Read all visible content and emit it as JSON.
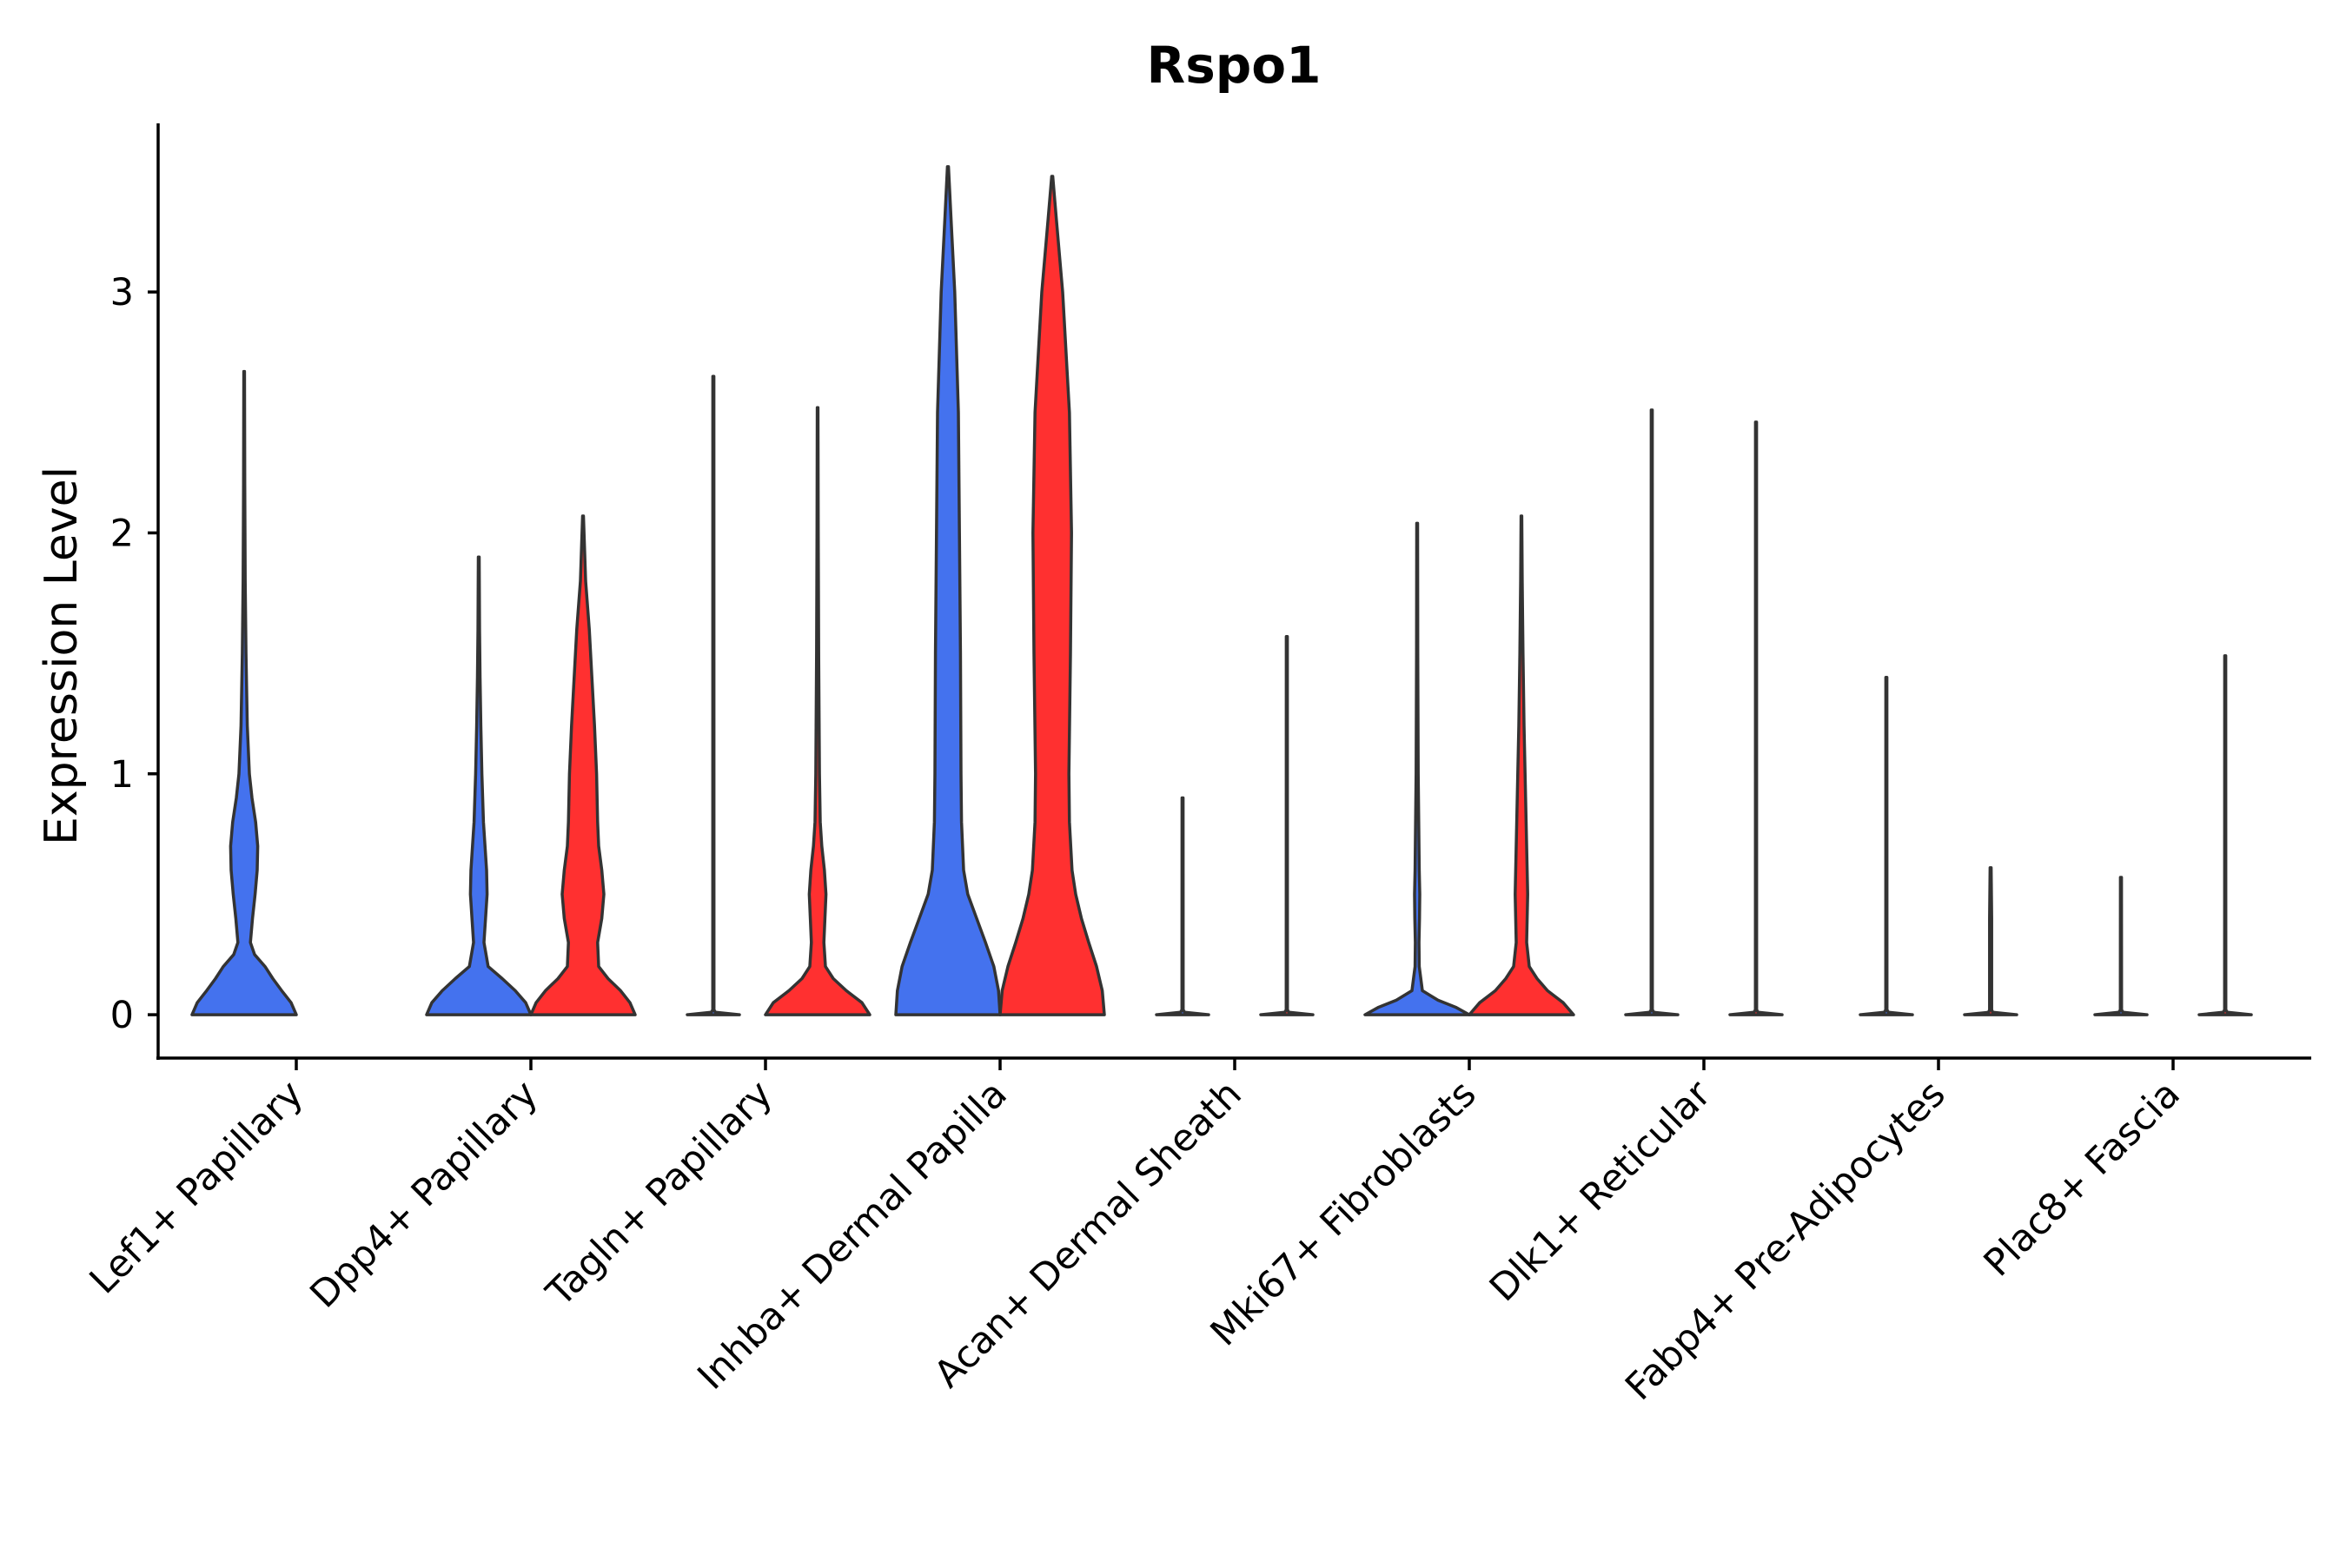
{
  "chart_data": {
    "type": "violin",
    "title": "Rspo1",
    "xlabel": "",
    "ylabel": "Expression Level",
    "ylim": [
      -0.18,
      3.7
    ],
    "yticks": [
      0,
      1,
      2,
      3
    ],
    "categories": [
      "Lef1+ Papillary",
      "Dpp4+ Papillary",
      "Tagln+ Papillary",
      "Inhba+ Dermal Papilla",
      "Acan+ Dermal Sheath",
      "Mki67+ Fibroblasts",
      "Dlk1+ Reticular",
      "Fabp4+ Pre-Adipocytes",
      "Plac8+ Fascia"
    ],
    "series": [
      {
        "name": "group1",
        "color": "#4472EE",
        "violins": [
          {
            "category": "Lef1+ Papillary",
            "max": 2.67,
            "profile": [
              [
                0,
                1.0
              ],
              [
                0.05,
                0.9
              ],
              [
                0.1,
                0.72
              ],
              [
                0.15,
                0.55
              ],
              [
                0.2,
                0.4
              ],
              [
                0.25,
                0.2
              ],
              [
                0.3,
                0.12
              ],
              [
                0.4,
                0.16
              ],
              [
                0.5,
                0.21
              ],
              [
                0.6,
                0.25
              ],
              [
                0.7,
                0.26
              ],
              [
                0.8,
                0.22
              ],
              [
                0.9,
                0.15
              ],
              [
                1.0,
                0.1
              ],
              [
                1.2,
                0.06
              ],
              [
                1.5,
                0.035
              ],
              [
                1.8,
                0.02
              ],
              [
                2.2,
                0.012
              ],
              [
                2.67,
                0.006
              ]
            ]
          },
          {
            "category": "Dpp4+ Papillary",
            "max": 1.9,
            "profile": [
              [
                0,
                1.0
              ],
              [
                0.05,
                0.9
              ],
              [
                0.1,
                0.7
              ],
              [
                0.15,
                0.45
              ],
              [
                0.2,
                0.18
              ],
              [
                0.3,
                0.1
              ],
              [
                0.4,
                0.13
              ],
              [
                0.5,
                0.16
              ],
              [
                0.6,
                0.15
              ],
              [
                0.7,
                0.12
              ],
              [
                0.8,
                0.09
              ],
              [
                1.0,
                0.06
              ],
              [
                1.2,
                0.04
              ],
              [
                1.4,
                0.025
              ],
              [
                1.6,
                0.015
              ],
              [
                1.9,
                0.008
              ]
            ]
          },
          {
            "category": "Tagln+ Papillary",
            "max": 2.65,
            "profile": [
              [
                0,
                0.5
              ],
              [
                0.01,
                0.04
              ],
              [
                0.02,
                0.012
              ],
              [
                2.65,
                0.01
              ]
            ]
          },
          {
            "category": "Inhba+ Dermal Papilla",
            "max": 3.52,
            "profile": [
              [
                0,
                1.0
              ],
              [
                0.1,
                0.97
              ],
              [
                0.2,
                0.88
              ],
              [
                0.3,
                0.72
              ],
              [
                0.4,
                0.55
              ],
              [
                0.5,
                0.38
              ],
              [
                0.6,
                0.3
              ],
              [
                0.8,
                0.26
              ],
              [
                1.0,
                0.25
              ],
              [
                1.5,
                0.24
              ],
              [
                2.0,
                0.22
              ],
              [
                2.5,
                0.2
              ],
              [
                3.0,
                0.13
              ],
              [
                3.3,
                0.06
              ],
              [
                3.52,
                0.01
              ]
            ]
          },
          {
            "category": "Acan+ Dermal Sheath",
            "max": 0.9,
            "profile": [
              [
                0,
                0.5
              ],
              [
                0.01,
                0.04
              ],
              [
                0.02,
                0.012
              ],
              [
                0.9,
                0.01
              ]
            ]
          },
          {
            "category": "Mki67+ Fibroblasts",
            "max": 2.04,
            "profile": [
              [
                0,
                1.0
              ],
              [
                0.03,
                0.75
              ],
              [
                0.06,
                0.4
              ],
              [
                0.1,
                0.1
              ],
              [
                0.2,
                0.04
              ],
              [
                0.3,
                0.035
              ],
              [
                0.4,
                0.045
              ],
              [
                0.5,
                0.05
              ],
              [
                0.6,
                0.04
              ],
              [
                0.8,
                0.03
              ],
              [
                1.0,
                0.02
              ],
              [
                1.5,
                0.012
              ],
              [
                2.04,
                0.008
              ]
            ]
          },
          {
            "category": "Dlk1+ Reticular",
            "max": 2.51,
            "profile": [
              [
                0,
                0.5
              ],
              [
                0.01,
                0.04
              ],
              [
                0.02,
                0.012
              ],
              [
                2.51,
                0.01
              ]
            ]
          },
          {
            "category": "Fabp4+ Pre-Adipocytes",
            "max": 1.4,
            "profile": [
              [
                0,
                0.5
              ],
              [
                0.01,
                0.04
              ],
              [
                0.02,
                0.012
              ],
              [
                1.4,
                0.01
              ]
            ]
          },
          {
            "category": "Plac8+ Fascia",
            "max": 0.57,
            "profile": [
              [
                0,
                0.5
              ],
              [
                0.01,
                0.04
              ],
              [
                0.02,
                0.012
              ],
              [
                0.57,
                0.01
              ]
            ]
          }
        ]
      },
      {
        "name": "group2",
        "color": "#FF3030",
        "violins": [
          {
            "category": "Lef1+ Papillary",
            "max": null,
            "profile": []
          },
          {
            "category": "Dpp4+ Papillary",
            "max": 2.07,
            "profile": [
              [
                0,
                1.0
              ],
              [
                0.05,
                0.9
              ],
              [
                0.1,
                0.72
              ],
              [
                0.15,
                0.48
              ],
              [
                0.2,
                0.3
              ],
              [
                0.3,
                0.28
              ],
              [
                0.4,
                0.36
              ],
              [
                0.5,
                0.4
              ],
              [
                0.6,
                0.36
              ],
              [
                0.7,
                0.3
              ],
              [
                0.8,
                0.28
              ],
              [
                1.0,
                0.26
              ],
              [
                1.2,
                0.22
              ],
              [
                1.4,
                0.17
              ],
              [
                1.6,
                0.12
              ],
              [
                1.8,
                0.05
              ],
              [
                2.07,
                0.008
              ]
            ]
          },
          {
            "category": "Tagln+ Papillary",
            "max": 2.52,
            "profile": [
              [
                0,
                1.0
              ],
              [
                0.05,
                0.85
              ],
              [
                0.1,
                0.55
              ],
              [
                0.15,
                0.3
              ],
              [
                0.2,
                0.15
              ],
              [
                0.3,
                0.12
              ],
              [
                0.4,
                0.14
              ],
              [
                0.5,
                0.16
              ],
              [
                0.6,
                0.13
              ],
              [
                0.7,
                0.08
              ],
              [
                0.8,
                0.05
              ],
              [
                1.0,
                0.035
              ],
              [
                1.5,
                0.02
              ],
              [
                2.0,
                0.012
              ],
              [
                2.52,
                0.006
              ]
            ]
          },
          {
            "category": "Inhba+ Dermal Papilla",
            "max": 3.48,
            "profile": [
              [
                0,
                1.0
              ],
              [
                0.1,
                0.96
              ],
              [
                0.2,
                0.85
              ],
              [
                0.3,
                0.7
              ],
              [
                0.4,
                0.56
              ],
              [
                0.5,
                0.45
              ],
              [
                0.6,
                0.38
              ],
              [
                0.8,
                0.33
              ],
              [
                1.0,
                0.32
              ],
              [
                1.5,
                0.35
              ],
              [
                2.0,
                0.37
              ],
              [
                2.5,
                0.33
              ],
              [
                3.0,
                0.2
              ],
              [
                3.3,
                0.08
              ],
              [
                3.48,
                0.01
              ]
            ]
          },
          {
            "category": "Acan+ Dermal Sheath",
            "max": 1.57,
            "profile": [
              [
                0,
                0.5
              ],
              [
                0.01,
                0.04
              ],
              [
                0.02,
                0.012
              ],
              [
                1.57,
                0.01
              ]
            ]
          },
          {
            "category": "Mki67+ Fibroblasts",
            "max": 2.07,
            "profile": [
              [
                0,
                1.0
              ],
              [
                0.05,
                0.8
              ],
              [
                0.1,
                0.5
              ],
              [
                0.15,
                0.3
              ],
              [
                0.2,
                0.15
              ],
              [
                0.3,
                0.1
              ],
              [
                0.4,
                0.11
              ],
              [
                0.5,
                0.12
              ],
              [
                0.6,
                0.11
              ],
              [
                0.8,
                0.09
              ],
              [
                1.0,
                0.07
              ],
              [
                1.2,
                0.05
              ],
              [
                1.5,
                0.03
              ],
              [
                1.8,
                0.015
              ],
              [
                2.07,
                0.006
              ]
            ]
          },
          {
            "category": "Dlk1+ Reticular",
            "max": 2.46,
            "profile": [
              [
                0,
                0.5
              ],
              [
                0.01,
                0.04
              ],
              [
                0.02,
                0.012
              ],
              [
                2.46,
                0.01
              ]
            ]
          },
          {
            "category": "Fabp4+ Pre-Adipocytes",
            "max": 0.61,
            "profile": [
              [
                0,
                0.5
              ],
              [
                0.01,
                0.04
              ],
              [
                0.02,
                0.02
              ],
              [
                0.2,
                0.02
              ],
              [
                0.4,
                0.02
              ],
              [
                0.61,
                0.01
              ]
            ]
          },
          {
            "category": "Plac8+ Fascia",
            "max": 1.49,
            "profile": [
              [
                0,
                0.5
              ],
              [
                0.01,
                0.04
              ],
              [
                0.02,
                0.012
              ],
              [
                1.49,
                0.01
              ]
            ]
          }
        ]
      }
    ]
  }
}
